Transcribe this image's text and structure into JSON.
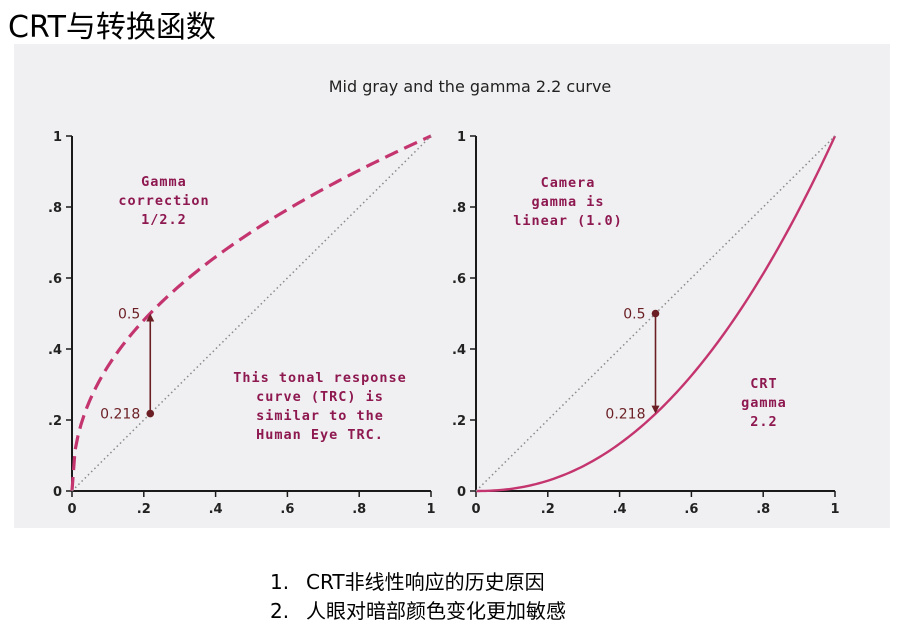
{
  "slide": {
    "title": "CRT与转换函数",
    "figure_title": "Mid gray and the gamma 2.2 curve",
    "bullets": [
      {
        "num": "1.",
        "text": "CRT非线性响应的历史原因"
      },
      {
        "num": "2.",
        "text": "人眼对暗部颜色变化更加敏感"
      }
    ]
  },
  "colors": {
    "panel_bg": "#f0f0f2",
    "axis": "#1a1a1a",
    "curve": "#c4356f",
    "annotation": "#8e1850",
    "marker": "#6b1f24",
    "diagonal": "#8a8a8a"
  },
  "chart_data": [
    {
      "type": "line",
      "title": "",
      "xlim": [
        0,
        1
      ],
      "ylim": [
        0,
        1
      ],
      "x_ticks": [
        "0",
        ".2",
        ".4",
        ".6",
        ".8",
        "1"
      ],
      "y_ticks": [
        "0",
        ".2",
        ".4",
        ".6",
        ".8",
        "1"
      ],
      "grid": false,
      "series": [
        {
          "style": "dashed",
          "gamma": 0.4545,
          "x": [
            0,
            0.1,
            0.218,
            0.3,
            0.5,
            0.7,
            0.9,
            1
          ],
          "y": [
            0,
            0.351,
            0.5,
            0.578,
            0.73,
            0.85,
            0.953,
            1
          ]
        },
        {
          "style": "dotted",
          "x": [
            0,
            1
          ],
          "y": [
            0,
            1
          ]
        }
      ],
      "arrow": {
        "x": 0.218,
        "y_from": 0.218,
        "y_to": 0.5,
        "label_from": "0.218",
        "label_to": "0.5"
      },
      "annotations": [
        {
          "lines": [
            "Gamma",
            "correction",
            "1/2.2"
          ]
        },
        {
          "lines": [
            "This tonal response",
            "curve (TRC) is",
            "similar to the",
            "Human Eye TRC."
          ]
        }
      ]
    },
    {
      "type": "line",
      "title": "",
      "xlim": [
        0,
        1
      ],
      "ylim": [
        0,
        1
      ],
      "x_ticks": [
        "0",
        ".2",
        ".4",
        ".6",
        ".8",
        "1"
      ],
      "y_ticks": [
        "0",
        ".2",
        ".4",
        ".6",
        ".8",
        "1"
      ],
      "grid": false,
      "series": [
        {
          "style": "solid",
          "gamma": 2.2,
          "x": [
            0,
            0.1,
            0.3,
            0.5,
            0.7,
            0.9,
            1
          ],
          "y": [
            0,
            0.006,
            0.071,
            0.218,
            0.456,
            0.793,
            1
          ]
        },
        {
          "style": "dotted",
          "x": [
            0,
            1
          ],
          "y": [
            0,
            1
          ]
        }
      ],
      "arrow": {
        "x": 0.5,
        "y_from": 0.5,
        "y_to": 0.218,
        "label_from": "0.5",
        "label_to": "0.218"
      },
      "annotations": [
        {
          "lines": [
            "Camera",
            "gamma is",
            "linear (1.0)"
          ]
        },
        {
          "lines": [
            "CRT",
            "gamma",
            "2.2"
          ]
        }
      ]
    }
  ]
}
